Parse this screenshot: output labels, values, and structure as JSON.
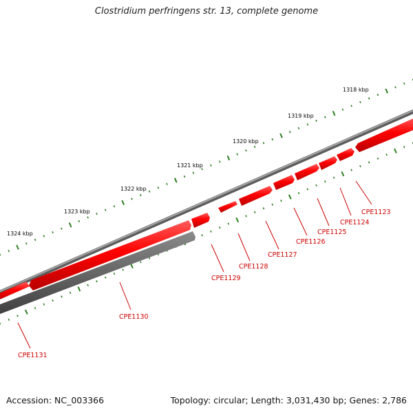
{
  "title": "Clostridium perfringens str. 13, complete genome",
  "footer": {
    "accession": "Accession: NC_003366",
    "summary": "Topology: circular; Length: 3,031,430 bp; Genes: 2,786"
  },
  "colors": {
    "backbone": "#808080",
    "forward_gene": "#ff0000",
    "reverse_gene": "#606060",
    "tick": "#2a7d1e",
    "gene_label": "#cc0000"
  },
  "scale_labels": [
    "1318 kbp",
    "1319 kbp",
    "1320 kbp",
    "1321 kbp",
    "1322 kbp",
    "1323 kbp",
    "1324 kbp"
  ],
  "genes": [
    {
      "name": "CPE1123",
      "strand": "forward"
    },
    {
      "name": "CPE1124",
      "strand": "forward"
    },
    {
      "name": "CPE1125",
      "strand": "forward"
    },
    {
      "name": "CPE1126",
      "strand": "forward"
    },
    {
      "name": "CPE1127",
      "strand": "forward"
    },
    {
      "name": "CPE1128",
      "strand": "forward"
    },
    {
      "name": "CPE1129",
      "strand": "forward"
    },
    {
      "name": "CPE1130",
      "strand": "reverse"
    },
    {
      "name": "CPE1131",
      "strand": "forward"
    }
  ]
}
